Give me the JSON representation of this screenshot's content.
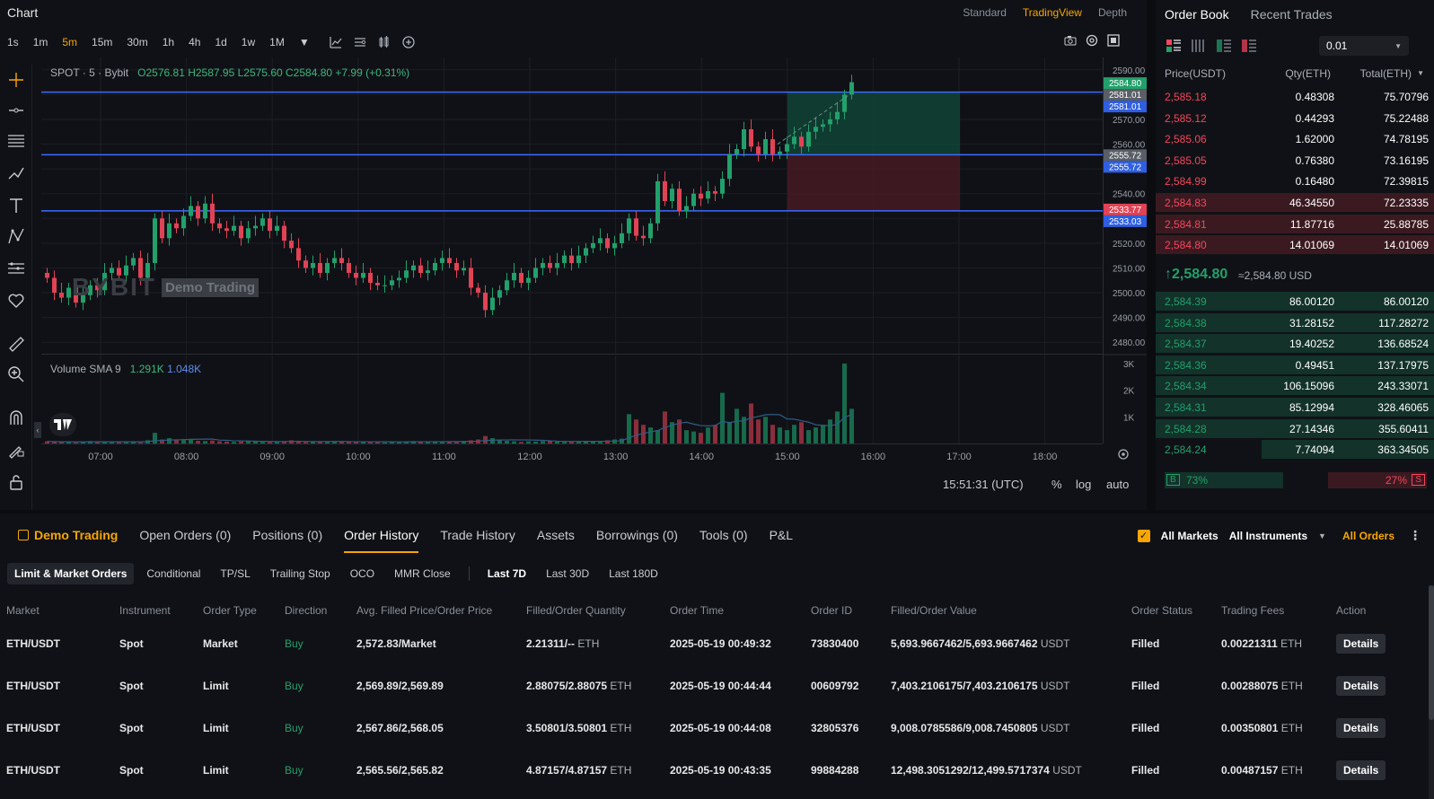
{
  "chart_header": {
    "title": "Chart",
    "modes": [
      "Standard",
      "TradingView",
      "Depth"
    ],
    "active_mode": "TradingView",
    "timeframes": [
      "1s",
      "1m",
      "5m",
      "15m",
      "30m",
      "1h",
      "4h",
      "1d",
      "1w",
      "1M"
    ],
    "active_timeframe": "5m"
  },
  "legend": {
    "symbol": "SPOT · 5 · Bybit",
    "open": "O2576.81",
    "high": "H2587.95",
    "low": "L2575.60",
    "close": "C2584.80",
    "change": "+7.99 (+0.31%)",
    "volume_label": "Volume SMA 9",
    "volume_val1": "1.291K",
    "volume_val2": "1.048K",
    "watermark": "BYBIT",
    "demo_badge": "Demo Trading"
  },
  "chart_data": {
    "type": "candlestick",
    "x_ticks": [
      "07:00",
      "08:00",
      "09:00",
      "10:00",
      "11:00",
      "12:00",
      "13:00",
      "14:00",
      "15:00",
      "16:00",
      "17:00",
      "18:00"
    ],
    "y_ticks": [
      2590.0,
      2580.0,
      2570.0,
      2560.0,
      2550.0,
      2540.0,
      2530.0,
      2520.0,
      2510.0,
      2500.0,
      2490.0,
      2480.0
    ],
    "y_tick_labels": [
      "2590.00",
      "2580.00",
      "2570.00",
      "2560.00",
      "2550.00",
      "2540.00",
      "2530.00",
      "2520.00",
      "2510.00",
      "2500.00",
      "2490.00",
      "2480.00"
    ],
    "ylim": [
      2475,
      2595
    ],
    "volume_ticks": [
      "3K",
      "2K",
      "1K"
    ],
    "volume_tick_values": [
      3000,
      2000,
      1000
    ],
    "price_labels": [
      {
        "value": 2584.8,
        "text": "2584.80",
        "kind": "last"
      },
      {
        "value": 2581.01,
        "text": "2581.01",
        "kind": "line-gray"
      },
      {
        "value": 2581.01,
        "text": "2581.01",
        "kind": "line-blue"
      },
      {
        "value": 2555.72,
        "text": "2555.72",
        "kind": "line-gray"
      },
      {
        "value": 2555.72,
        "text": "2555.72",
        "kind": "line-blue"
      },
      {
        "value": 2533.77,
        "text": "2533.77",
        "kind": "line-red"
      },
      {
        "value": 2533.03,
        "text": "2533.03",
        "kind": "line-blue"
      }
    ],
    "horizontal_lines": [
      2581.01,
      2555.72,
      2533.03
    ],
    "position_box": {
      "x_start": "15:00",
      "x_end": "16:45",
      "entry": 2555.72,
      "target": 2581.01,
      "stop": 2533.03
    },
    "closes": [
      2506,
      2500,
      2498,
      2502,
      2496,
      2499,
      2503,
      2501,
      2508,
      2510,
      2507,
      2511,
      2514,
      2506,
      2512,
      2530,
      2522,
      2528,
      2526,
      2531,
      2535,
      2530,
      2536,
      2528,
      2526,
      2525,
      2527,
      2522,
      2526,
      2527,
      2530,
      2525,
      2527,
      2521,
      2518,
      2513,
      2510,
      2512,
      2508,
      2512,
      2514,
      2512,
      2508,
      2506,
      2508,
      2504,
      2503,
      2503,
      2505,
      2506,
      2509,
      2511,
      2508,
      2509,
      2512,
      2514,
      2512,
      2509,
      2510,
      2502,
      2500,
      2493,
      2498,
      2501,
      2505,
      2508,
      2504,
      2506,
      2510,
      2512,
      2510,
      2512,
      2515,
      2512,
      2515,
      2518,
      2520,
      2522,
      2518,
      2520,
      2524,
      2530,
      2523,
      2522,
      2528,
      2545,
      2537,
      2542,
      2533,
      2535,
      2540,
      2538,
      2541,
      2540,
      2546,
      2556,
      2558,
      2566,
      2559,
      2556,
      2562,
      2556,
      2557,
      2560,
      2563,
      2559,
      2565,
      2567,
      2568,
      2570,
      2573,
      2580,
      2585
    ],
    "volumes": [
      80,
      60,
      50,
      70,
      40,
      50,
      90,
      60,
      70,
      80,
      50,
      60,
      70,
      40,
      120,
      400,
      150,
      200,
      120,
      140,
      160,
      100,
      90,
      110,
      80,
      70,
      60,
      80,
      100,
      70,
      60,
      50,
      80,
      90,
      120,
      70,
      60,
      50,
      60,
      80,
      70,
      90,
      60,
      50,
      70,
      60,
      50,
      40,
      70,
      60,
      80,
      90,
      70,
      60,
      80,
      70,
      60,
      80,
      90,
      120,
      150,
      280,
      200,
      120,
      100,
      80,
      60,
      80,
      70,
      90,
      100,
      80,
      60,
      70,
      90,
      80,
      70,
      100,
      120,
      150,
      180,
      1100,
      900,
      700,
      600,
      500,
      1200,
      800,
      900,
      500,
      450,
      400,
      600,
      700,
      1900,
      800,
      1300,
      1000,
      1500,
      900,
      1000,
      700,
      600,
      500,
      700,
      800,
      500,
      600,
      700,
      900,
      1200,
      3000,
      1300
    ]
  },
  "chart_footer": {
    "time": "15:51:31 (UTC)",
    "pct": "%",
    "log": "log",
    "auto": "auto"
  },
  "order_book": {
    "tabs": [
      "Order Book",
      "Recent Trades"
    ],
    "active_tab": "Order Book",
    "precision": "0.01",
    "headers": [
      "Price(USDT)",
      "Qty(ETH)",
      "Total(ETH)"
    ],
    "asks": [
      {
        "price": "2,585.18",
        "qty": "0.48308",
        "total": "75.70796",
        "depth": 0.0
      },
      {
        "price": "2,585.12",
        "qty": "0.44293",
        "total": "75.22488",
        "depth": 0.0
      },
      {
        "price": "2,585.06",
        "qty": "1.62000",
        "total": "74.78195",
        "depth": 0.0
      },
      {
        "price": "2,585.05",
        "qty": "0.76380",
        "total": "73.16195",
        "depth": 0.0
      },
      {
        "price": "2,584.99",
        "qty": "0.16480",
        "total": "72.39815",
        "depth": 0.0
      },
      {
        "price": "2,584.83",
        "qty": "46.34550",
        "total": "72.23335",
        "depth": 1.0
      },
      {
        "price": "2,584.81",
        "qty": "11.87716",
        "total": "25.88785",
        "depth": 1.0
      },
      {
        "price": "2,584.80",
        "qty": "14.01069",
        "total": "14.01069",
        "depth": 1.0
      }
    ],
    "last_price": "2,584.80",
    "last_price_usd": "≈2,584.80 USD",
    "bids": [
      {
        "price": "2,584.39",
        "qty": "86.00120",
        "total": "86.00120",
        "depth": 1.0
      },
      {
        "price": "2,584.38",
        "qty": "31.28152",
        "total": "117.28272",
        "depth": 1.0
      },
      {
        "price": "2,584.37",
        "qty": "19.40252",
        "total": "136.68524",
        "depth": 1.0
      },
      {
        "price": "2,584.36",
        "qty": "0.49451",
        "total": "137.17975",
        "depth": 1.0
      },
      {
        "price": "2,584.34",
        "qty": "106.15096",
        "total": "243.33071",
        "depth": 1.0
      },
      {
        "price": "2,584.31",
        "qty": "85.12994",
        "total": "328.46065",
        "depth": 1.0
      },
      {
        "price": "2,584.28",
        "qty": "27.14346",
        "total": "355.60411",
        "depth": 1.0
      },
      {
        "price": "2,584.24",
        "qty": "7.74094",
        "total": "363.34505",
        "depth": 0.62
      }
    ],
    "buy_pct": "73%",
    "sell_pct": "27%",
    "buy_tag": "B",
    "sell_tag": "S"
  },
  "bottom": {
    "tabs": [
      "Demo Trading",
      "Open Orders (0)",
      "Positions (0)",
      "Order History",
      "Trade History",
      "Assets",
      "Borrowings (0)",
      "Tools (0)",
      "P&L"
    ],
    "active_tab": "Order History",
    "right_filters": {
      "all_markets": "All Markets",
      "all_instruments": "All Instruments",
      "all_orders": "All Orders"
    },
    "subtabs": [
      "Limit & Market Orders",
      "Conditional",
      "TP/SL",
      "Trailing Stop",
      "OCO",
      "MMR Close"
    ],
    "periods": [
      "Last 7D",
      "Last 30D",
      "Last 180D"
    ],
    "columns": [
      "Market",
      "Instrument",
      "Order Type",
      "Direction",
      "Avg. Filled Price/Order Price",
      "Filled/Order Quantity",
      "Order Time",
      "Order ID",
      "Filled/Order Value",
      "Order Status",
      "Trading Fees",
      "Action"
    ],
    "rows": [
      {
        "market": "ETH/USDT",
        "instrument": "Spot",
        "type": "Market",
        "direction": "Buy",
        "price": "2,572.83/Market",
        "qty": "2.21311/--",
        "qty_unit": "ETH",
        "time": "2025-05-19 00:49:32",
        "id": "73830400",
        "value": "5,693.9667462/5,693.9667462",
        "value_unit": "USDT",
        "status": "Filled",
        "fee": "0.00221311",
        "fee_unit": "ETH",
        "action": "Details"
      },
      {
        "market": "ETH/USDT",
        "instrument": "Spot",
        "type": "Limit",
        "direction": "Buy",
        "price": "2,569.89/2,569.89",
        "qty": "2.88075/2.88075",
        "qty_unit": "ETH",
        "time": "2025-05-19 00:44:44",
        "id": "00609792",
        "value": "7,403.2106175/7,403.2106175",
        "value_unit": "USDT",
        "status": "Filled",
        "fee": "0.00288075",
        "fee_unit": "ETH",
        "action": "Details"
      },
      {
        "market": "ETH/USDT",
        "instrument": "Spot",
        "type": "Limit",
        "direction": "Buy",
        "price": "2,567.86/2,568.05",
        "qty": "3.50801/3.50801",
        "qty_unit": "ETH",
        "time": "2025-05-19 00:44:08",
        "id": "32805376",
        "value": "9,008.0785586/9,008.7450805",
        "value_unit": "USDT",
        "status": "Filled",
        "fee": "0.00350801",
        "fee_unit": "ETH",
        "action": "Details"
      },
      {
        "market": "ETH/USDT",
        "instrument": "Spot",
        "type": "Limit",
        "direction": "Buy",
        "price": "2,565.56/2,565.82",
        "qty": "4.87157/4.87157",
        "qty_unit": "ETH",
        "time": "2025-05-19 00:43:35",
        "id": "99884288",
        "value": "12,498.3051292/12,499.5717374",
        "value_unit": "USDT",
        "status": "Filled",
        "fee": "0.00487157",
        "fee_unit": "ETH",
        "action": "Details"
      }
    ]
  },
  "colors": {
    "up": "#22a06b",
    "down": "#e04355",
    "accent": "#f7a600",
    "line": "#3d6bff"
  }
}
